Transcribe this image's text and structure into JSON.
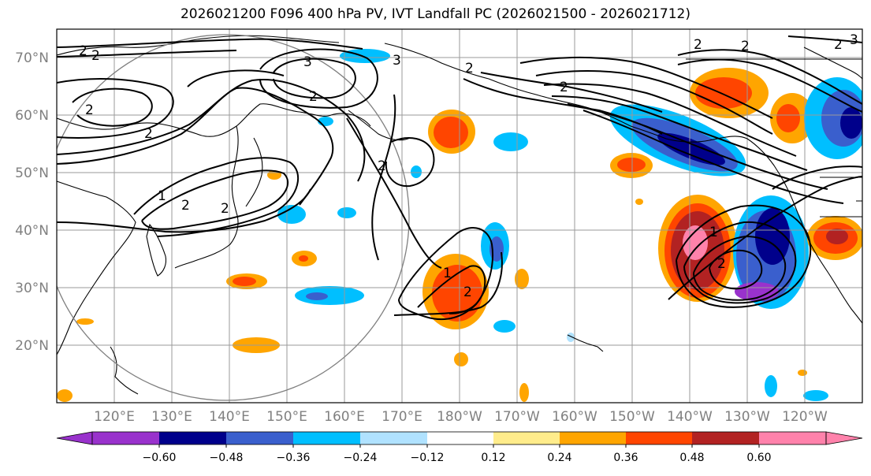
{
  "title": "2026021200 F096 400 hPa PV, IVT Landfall PC (2026021500 - 2026021712)",
  "map": {
    "lat_labels": [
      "70°N",
      "60°N",
      "50°N",
      "40°N",
      "30°N",
      "20°N"
    ],
    "lon_labels": [
      "120°E",
      "130°E",
      "140°E",
      "150°E",
      "160°E",
      "170°E",
      "180°W",
      "170°W",
      "160°W",
      "150°W",
      "140°W",
      "130°W",
      "120°W"
    ],
    "contour_labels": [
      "2",
      "2",
      "3",
      "2",
      "2",
      "2",
      "2",
      "2",
      "3",
      "2",
      "2",
      "2",
      "2",
      "1",
      "1",
      "2",
      "2",
      "1",
      "2",
      "2",
      "3"
    ]
  },
  "colorbar": {
    "colors": [
      "#9932cc",
      "#00008b",
      "#3a5fcd",
      "#00bfff",
      "#b0e2ff",
      "#ffffff",
      "#ffec8b",
      "#ffa500",
      "#ff4500",
      "#b22222",
      "#ff82ab"
    ],
    "tick_labels": [
      "−0.60",
      "−0.48",
      "−0.36",
      "−0.24",
      "−0.12",
      "0.12",
      "0.24",
      "0.36",
      "0.48",
      "0.60"
    ]
  }
}
